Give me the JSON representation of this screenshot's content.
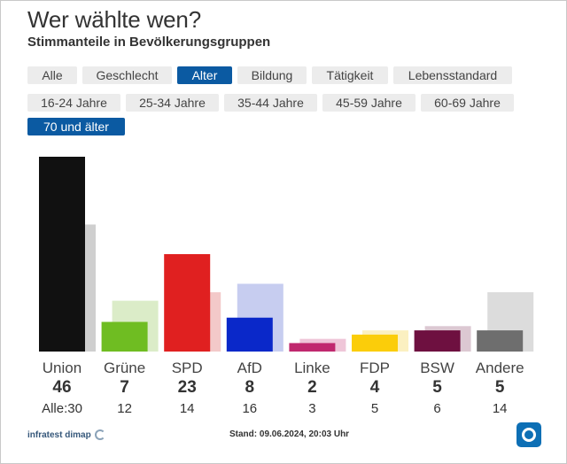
{
  "header": {
    "title": "Wer wählte wen?",
    "subtitle": "Stimmanteile in Bevölkerungsgruppen"
  },
  "tabs": [
    {
      "label": "Alle",
      "active": false
    },
    {
      "label": "Geschlecht",
      "active": false
    },
    {
      "label": "Alter",
      "active": true
    },
    {
      "label": "Bildung",
      "active": false
    },
    {
      "label": "Tätigkeit",
      "active": false
    },
    {
      "label": "Lebensstandard",
      "active": false
    }
  ],
  "age_groups": [
    {
      "label": "16-24 Jahre",
      "active": false
    },
    {
      "label": "25-34 Jahre",
      "active": false
    },
    {
      "label": "35-44 Jahre",
      "active": false
    },
    {
      "label": "45-59 Jahre",
      "active": false
    },
    {
      "label": "60-69 Jahre",
      "active": false
    },
    {
      "label": "70 und älter",
      "active": true
    }
  ],
  "chart_data": {
    "type": "bar",
    "categories": [
      "Union",
      "Grüne",
      "SPD",
      "AfD",
      "Linke",
      "FDP",
      "BSW",
      "Andere"
    ],
    "series": [
      {
        "name": "70 und älter",
        "values": [
          46,
          7,
          23,
          8,
          2,
          4,
          5,
          5
        ]
      },
      {
        "name": "Alle",
        "values": [
          30,
          12,
          14,
          16,
          3,
          5,
          6,
          14
        ]
      }
    ],
    "colors": [
      "#111111",
      "#6fbd22",
      "#e02020",
      "#0a28c9",
      "#c0286e",
      "#fbcd0a",
      "#6e1040",
      "#6e6e6e"
    ],
    "colors_light": [
      "#cfcfcf",
      "#dbecc8",
      "#f3c9c9",
      "#c7cdf0",
      "#efc6d8",
      "#fbf0c1",
      "#dcc8d2",
      "#dcdcdc"
    ],
    "all_prefix": "Alle:",
    "ylim": [
      0,
      46
    ]
  },
  "footer": {
    "source": "infratest dimap",
    "stand": "Stand: 09.06.2024, 20:03 Uhr"
  }
}
